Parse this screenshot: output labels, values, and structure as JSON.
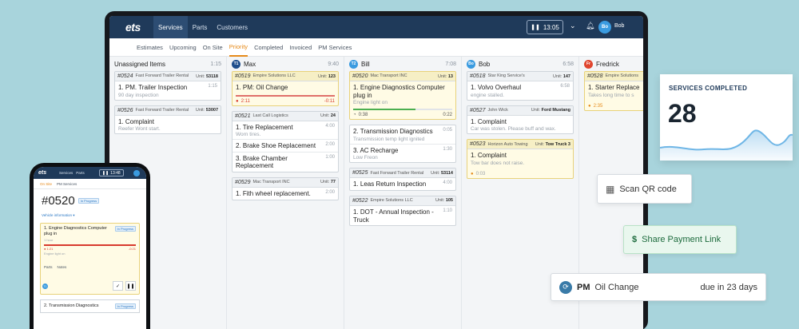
{
  "app": {
    "logo": "ets",
    "nav_tabs": [
      "Services",
      "Parts",
      "Customers"
    ],
    "timer": "13:05",
    "user_initials": "Bo",
    "user_name": "Bob"
  },
  "subnav": [
    "Estimates",
    "Upcoming",
    "On Site",
    "Priority",
    "Completed",
    "Invoiced",
    "PM Services"
  ],
  "columns": [
    {
      "title": "Unassigned Items",
      "hours": "1:15",
      "cards": [
        {
          "no": "#0524",
          "customer": "Fast Forward Trailer Rental",
          "unit_label": "Unit:",
          "unit": "53118",
          "tasks": [
            {
              "title": "1. PM. Trailer Inspection",
              "hours": "1:15",
              "note": "90 day inspection"
            }
          ]
        },
        {
          "no": "#0526",
          "customer": "Fast Forward Trailer Rental",
          "unit_label": "Unit:",
          "unit": "53007",
          "tasks": [
            {
              "title": "1. Complaint",
              "note": "Reefer Wont start."
            }
          ]
        }
      ]
    },
    {
      "title": "Max",
      "initials": "T1",
      "hours": "9:40",
      "avatar_color": "#1f4e8c",
      "cards": [
        {
          "no": "#0519",
          "customer": "Empire Solutions LLC",
          "unit_label": "Unit:",
          "unit": "123",
          "yellow": true,
          "tasks": [
            {
              "title": "1. PM: Oil Change",
              "elapsed": "2:11",
              "remaining": "-0:11",
              "progress": 1.0,
              "state": "over"
            }
          ]
        },
        {
          "no": "#0521",
          "customer": "Last Call Logistics",
          "unit_label": "Unit:",
          "unit": "24",
          "tasks": [
            {
              "title": "1. Tire Replacement",
              "hours": "4:00",
              "note": "Worn tires."
            },
            {
              "title": "2. Brake Shoe Replacement",
              "hours": "2:00"
            },
            {
              "title": "3. Brake Chamber Replacement",
              "hours": "1:00"
            }
          ]
        },
        {
          "no": "#0529",
          "customer": "Mac Transport INC",
          "unit_label": "Unit:",
          "unit": "77",
          "tasks": [
            {
              "title": "1. Fith wheel replacement.",
              "hours": "2:00"
            }
          ]
        }
      ]
    },
    {
      "title": "Bill",
      "initials": "T2",
      "hours": "7:08",
      "avatar_color": "#3a9be0",
      "cards": [
        {
          "no": "#0520",
          "customer": "Mac Transport INC",
          "unit_label": "Unit:",
          "unit": "13",
          "yellow": true,
          "tasks": [
            {
              "title": "1. Engine Diagnostics Computer plug in",
              "note": "Engine light on",
              "elapsed": "0:38",
              "remaining": "0:22",
              "progress": 0.63,
              "state": "ok"
            }
          ]
        },
        {
          "no": "#0520b",
          "customer": "",
          "unit_label": "",
          "unit": "",
          "hidden_head": true,
          "tasks": [
            {
              "title": "2. Transmission Diagnostics",
              "hours": "0:05",
              "note": "Transmission temp light ignited"
            },
            {
              "title": "3. AC Recharge",
              "hours": "1:30",
              "note": "Low Freon"
            }
          ]
        },
        {
          "no": "#0525",
          "customer": "Fast Forward Trailer Rental",
          "unit_label": "Unit:",
          "unit": "53114",
          "tasks": [
            {
              "title": "1. Leas Return Inspection",
              "hours": "4:00"
            }
          ]
        },
        {
          "no": "#0522",
          "customer": "Empire Solutions LLC",
          "unit_label": "Unit:",
          "unit": "105",
          "tasks": [
            {
              "title": "1. DOT - Annual Inspection - Truck",
              "hours": "1:10"
            }
          ]
        }
      ]
    },
    {
      "title": "Bob",
      "initials": "Bo",
      "hours": "6:58",
      "avatar_color": "#3a9be0",
      "cards": [
        {
          "no": "#0518",
          "customer": "Star King Service's",
          "unit_label": "Unit:",
          "unit": "147",
          "tasks": [
            {
              "title": "1. Volvo Overhaul",
              "hours": "6:58",
              "note": "engine stalled."
            }
          ]
        },
        {
          "no": "#0527",
          "customer": "John Wick",
          "unit_label": "Unit:",
          "unit": "Ford Mustang",
          "tasks": [
            {
              "title": "1. Complaint",
              "note": "Car was stolen. Please buff and wax."
            }
          ]
        },
        {
          "no": "#0523",
          "customer": "Horizon Auto Towing",
          "unit_label": "Unit:",
          "unit": "Tow Truck 3",
          "yellow": true,
          "tasks": [
            {
              "title": "1. Complaint",
              "note": "Tow bar does not raise.",
              "elapsed": "0:03",
              "state": "paused"
            }
          ]
        }
      ]
    },
    {
      "title": "Fredrick",
      "initials": "Fr",
      "hours": "",
      "avatar_color": "#e0452e",
      "cards": [
        {
          "no": "#0528",
          "customer": "Empire Solutions",
          "unit_label": "",
          "unit": "",
          "yellow": true,
          "tasks": [
            {
              "title": "1. Starter Replace",
              "note": "Takes long time to s",
              "elapsed": "2:35",
              "state": "paused"
            }
          ]
        }
      ]
    }
  ],
  "phone": {
    "logo": "ets",
    "nav": [
      "Services",
      "Parts"
    ],
    "timer": "13:48",
    "tabs": [
      "On Site",
      "PM Services"
    ],
    "work_order": "#0520",
    "status": "In Progress",
    "vehicle_info": "Vehicle information",
    "task1": {
      "title": "1. Engine Diagnostics Computer plug in",
      "status": "In Progress",
      "hours": "1 hour",
      "elapsed": "1:21",
      "remaining": "-0:21",
      "note": "Engine light on",
      "progress": 1.0
    },
    "task_tabs": [
      "Parts",
      "Notes"
    ],
    "tech_initials": "T1",
    "task2": {
      "title": "2. Transmission Diagnostics",
      "status": "In Progress"
    }
  },
  "widgets": {
    "services_completed_label": "SERVICES COMPLETED",
    "services_completed_value": "28",
    "scan_qr": "Scan QR code",
    "share_payment": "Share Payment Link",
    "notice_type": "PM",
    "notice_title": "Oil Change",
    "notice_due": "due in 23 days"
  },
  "colors": {
    "primary": "#1f3a5a",
    "accent": "#e68a1a",
    "danger": "#d83a2e",
    "ok": "#4caf50",
    "link": "#2b78c4",
    "chart_line": "#6fb6e6"
  }
}
